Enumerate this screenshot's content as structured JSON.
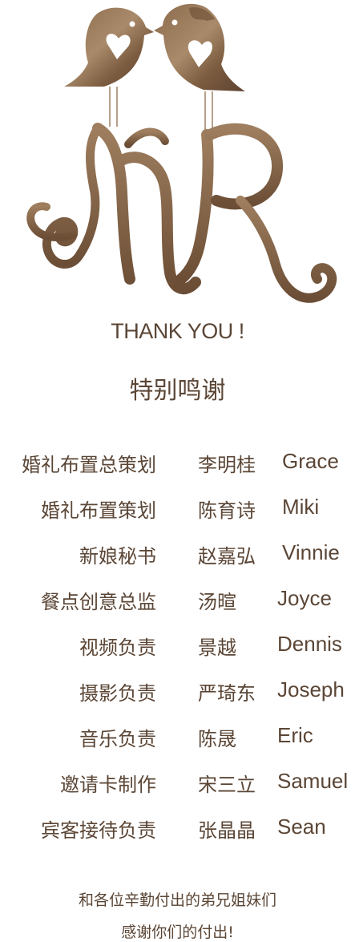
{
  "logo": {
    "icon": "bird-couple-monogram-icon",
    "lettering": "MR"
  },
  "thank_you": "THANK YOU !",
  "special_thanks": "特别鸣谢",
  "credits": [
    {
      "role": "婚礼布置总策划",
      "name_cn": "李明桂",
      "name_en": "Grace"
    },
    {
      "role": "婚礼布置策划",
      "name_cn": "陈育诗",
      "name_en": "Miki"
    },
    {
      "role": "新娘秘书",
      "name_cn": "赵嘉弘",
      "name_en": "Vinnie"
    },
    {
      "role": "餐点创意总监",
      "name_cn": "汤暄",
      "name_en": "Joyce"
    },
    {
      "role": "视频负责",
      "name_cn": "景越",
      "name_en": "Dennis"
    },
    {
      "role": "摄影负责",
      "name_cn": "严琦东",
      "name_en": "Joseph"
    },
    {
      "role": "音乐负责",
      "name_cn": "陈晟",
      "name_en": "Eric"
    },
    {
      "role": "邀请卡制作",
      "name_cn": "宋三立",
      "name_en": "Samuel"
    },
    {
      "role": "宾客接待负责",
      "name_cn": "张晶晶",
      "name_en": "Sean"
    }
  ],
  "footer": {
    "line1": "和各位辛勤付出的弟兄姐妹们",
    "line2": "感谢你们的付出!"
  }
}
